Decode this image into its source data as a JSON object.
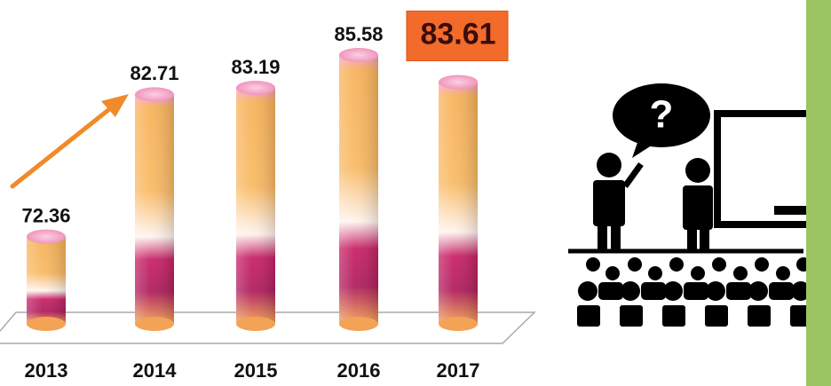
{
  "chart_data": {
    "type": "bar",
    "categories": [
      "2013",
      "2014",
      "2015",
      "2016",
      "2017"
    ],
    "values": [
      72.36,
      82.71,
      83.19,
      85.58,
      83.61
    ],
    "ylim": [
      66,
      87
    ],
    "highlight": "2017",
    "highlight_color": "#f26b2a"
  },
  "illustration": {
    "bubble_text": "?"
  }
}
